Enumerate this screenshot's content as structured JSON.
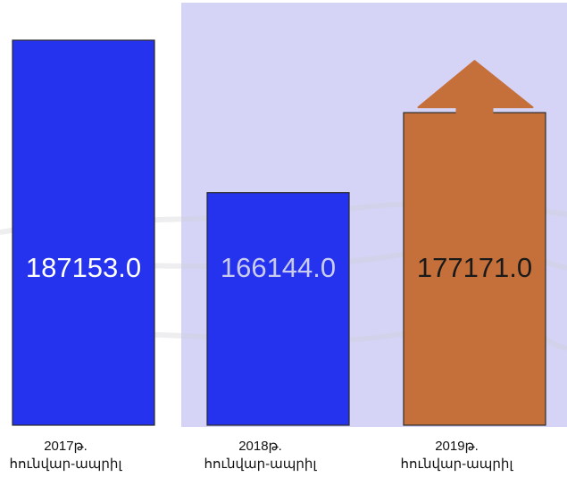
{
  "chart_data": {
    "type": "bar",
    "categories": [
      "2017թ.\nհունվար-ապրիլ",
      "2018թ.\nհունվար-ապրիլ",
      "2019թ.\nհունվար-ապրիլ"
    ],
    "values": [
      187153.0,
      166144.0,
      177171.0
    ],
    "value_labels": [
      "187153.0",
      "166144.0",
      "177171.0"
    ],
    "title": "",
    "xlabel": "",
    "ylabel": "",
    "legend": "none",
    "grid": false,
    "bar_colors": [
      "#2533ee",
      "#2533ee",
      "#c5703a"
    ],
    "value_label_colors": [
      "#ffffff",
      "#c9ccee",
      "#1a1a1a"
    ],
    "highlight_panel_color": "#d6d4f6",
    "last_bar_marker": "up-arrow-icon"
  }
}
